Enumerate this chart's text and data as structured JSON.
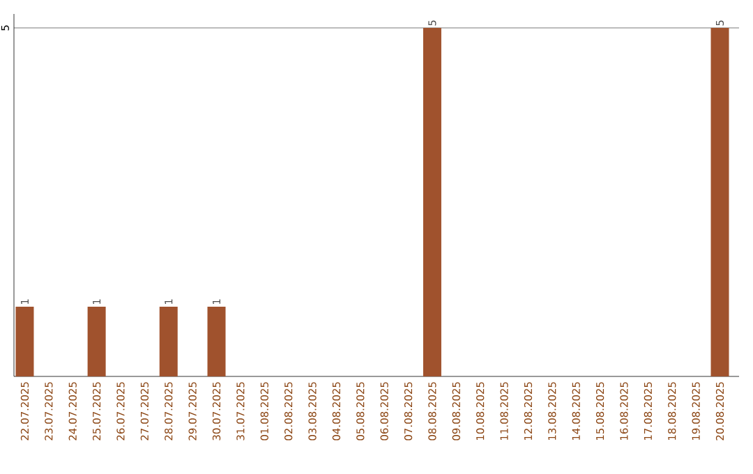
{
  "chart_data": {
    "type": "bar",
    "categories": [
      "22.07.2025",
      "23.07.2025",
      "24.07.2025",
      "25.07.2025",
      "26.07.2025",
      "27.07.2025",
      "28.07.2025",
      "29.07.2025",
      "30.07.2025",
      "31.07.2025",
      "01.08.2025",
      "02.08.2025",
      "03.08.2025",
      "04.08.2025",
      "05.08.2025",
      "06.08.2025",
      "07.08.2025",
      "08.08.2025",
      "09.08.2025",
      "10.08.2025",
      "11.08.2025",
      "12.08.2025",
      "13.08.2025",
      "14.08.2025",
      "15.08.2025",
      "16.08.2025",
      "17.08.2025",
      "18.08.2025",
      "19.08.2025",
      "20.08.2025"
    ],
    "values": [
      1,
      null,
      null,
      1,
      null,
      null,
      1,
      null,
      1,
      null,
      null,
      null,
      null,
      null,
      null,
      null,
      null,
      5,
      null,
      null,
      null,
      null,
      null,
      null,
      null,
      null,
      null,
      null,
      null,
      5
    ],
    "color": "#a0522d",
    "ylim": [
      0,
      5.2
    ],
    "yticks": [
      5
    ],
    "grid": "y",
    "data_labels": true
  }
}
